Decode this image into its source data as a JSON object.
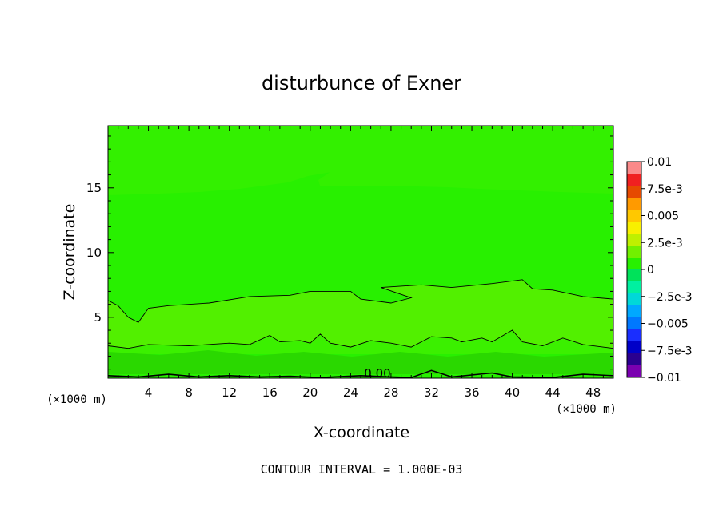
{
  "chart_data": {
    "type": "heatmap",
    "title": "disturbunce of Exner",
    "xlabel": "X-coordinate",
    "ylabel": "Z-coordinate",
    "x_unit": "(×1000 m)",
    "xlim": [
      0,
      50
    ],
    "ylim": [
      0.3,
      19.8
    ],
    "x_ticks": [
      "4",
      "8",
      "12",
      "16",
      "20",
      "24",
      "28",
      "32",
      "36",
      "40",
      "44",
      "48"
    ],
    "y_ticks": [
      "5",
      "10",
      "15"
    ],
    "colorbar_labels": [
      "0.01",
      "7.5e-3",
      "0.005",
      "2.5e-3",
      "0",
      "−2.5e-3",
      "−0.005",
      "−7.5e-3",
      "−0.01"
    ],
    "colorbar_range": [
      -0.01,
      0.01
    ],
    "colorbar_colors": [
      "#fa8a8a",
      "#f02020",
      "#e64a00",
      "#ff9a00",
      "#ffc800",
      "#f8f000",
      "#bff000",
      "#72f000",
      "#28f000",
      "#00e25a",
      "#00f0a0",
      "#00d8d8",
      "#00a8ff",
      "#0078ff",
      "#1a2eff",
      "#0000c8",
      "#2a0090",
      "#7a00b0"
    ],
    "contour_label": "0.00",
    "footer": "CONTOUR INTERVAL = 1.000E-03",
    "bands": [
      {
        "level": "0 to 1e-3",
        "color": "#3bf000"
      },
      {
        "level": "1e-3 to 2e-3",
        "color": "#52f000"
      },
      {
        "level": "-1e-3 to 0",
        "color": "#2ad800"
      }
    ],
    "contours": [
      {
        "name": "upper",
        "points": [
          [
            0,
            6.3
          ],
          [
            1,
            5.9
          ],
          [
            2,
            5.0
          ],
          [
            3,
            4.6
          ],
          [
            4,
            5.7
          ],
          [
            6,
            5.9
          ],
          [
            10,
            6.1
          ],
          [
            14,
            6.6
          ],
          [
            18,
            6.7
          ],
          [
            20,
            7.0
          ],
          [
            24,
            7.0
          ],
          [
            25,
            6.4
          ],
          [
            28,
            6.1
          ],
          [
            30,
            6.5
          ],
          [
            27,
            7.3
          ],
          [
            31,
            7.5
          ],
          [
            34,
            7.3
          ],
          [
            38,
            7.6
          ],
          [
            41,
            7.9
          ],
          [
            42,
            7.2
          ],
          [
            44,
            7.1
          ],
          [
            47,
            6.6
          ],
          [
            50,
            6.4
          ]
        ]
      },
      {
        "name": "middle",
        "points": [
          [
            0,
            2.8
          ],
          [
            2,
            2.6
          ],
          [
            4,
            2.9
          ],
          [
            8,
            2.8
          ],
          [
            12,
            3.0
          ],
          [
            14,
            2.9
          ],
          [
            16,
            3.6
          ],
          [
            17,
            3.1
          ],
          [
            19,
            3.2
          ],
          [
            20,
            3.0
          ],
          [
            21,
            3.7
          ],
          [
            22,
            3.0
          ],
          [
            24,
            2.7
          ],
          [
            26,
            3.2
          ],
          [
            28,
            3.0
          ],
          [
            30,
            2.7
          ],
          [
            32,
            3.5
          ],
          [
            34,
            3.4
          ],
          [
            35,
            3.1
          ],
          [
            37,
            3.4
          ],
          [
            38,
            3.1
          ],
          [
            40,
            4.0
          ],
          [
            41,
            3.1
          ],
          [
            43,
            2.8
          ],
          [
            45,
            3.4
          ],
          [
            47,
            2.9
          ],
          [
            50,
            2.6
          ]
        ]
      },
      {
        "name": "bottom",
        "points": [
          [
            0,
            0.5
          ],
          [
            3,
            0.4
          ],
          [
            6,
            0.6
          ],
          [
            9,
            0.4
          ],
          [
            12,
            0.5
          ],
          [
            15,
            0.4
          ],
          [
            18,
            0.45
          ],
          [
            21,
            0.35
          ],
          [
            25,
            0.5
          ],
          [
            28,
            0.4
          ],
          [
            30,
            0.35
          ],
          [
            32,
            0.9
          ],
          [
            34,
            0.4
          ],
          [
            38,
            0.7
          ],
          [
            40,
            0.4
          ],
          [
            44,
            0.35
          ],
          [
            47,
            0.6
          ],
          [
            50,
            0.5
          ]
        ]
      }
    ]
  }
}
